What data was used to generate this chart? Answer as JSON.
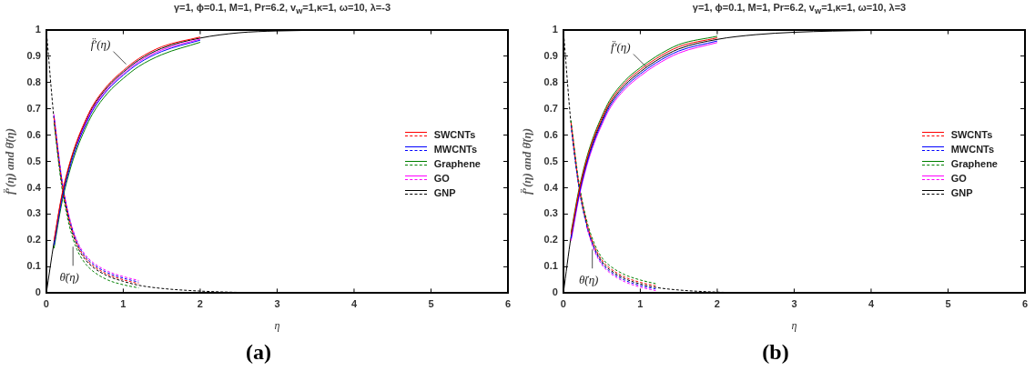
{
  "chart_data": [
    {
      "type": "line",
      "title": "γ=1, ϕ=0.1, M=1, Pr=6.2, v$_{w}$=1,κ=1, ω=10, λ=-3",
      "xlabel": "η",
      "ylabel": "f̈′(η) and θ̈(η)",
      "legend": "right",
      "grid": false,
      "marker": "none",
      "x": [
        0,
        0.1,
        0.2,
        0.3,
        0.4,
        0.5,
        0.6,
        0.8,
        1,
        1.2,
        1.5,
        2,
        2.5,
        3,
        4,
        5,
        6
      ],
      "xlim": [
        0,
        6
      ],
      "xticks": [
        0,
        1,
        2,
        3,
        4,
        5,
        6
      ],
      "ylim": [
        0,
        1
      ],
      "yticks": [
        0,
        0.1,
        0.2,
        0.3,
        0.4,
        0.5,
        0.6,
        0.7,
        0.8,
        0.9,
        1
      ],
      "series": [
        {
          "name": "SWCNTs",
          "color": "#ff0000",
          "line_style": "solid",
          "values": [
            null,
            0.2,
            0.37,
            0.49,
            0.58,
            0.65,
            0.71,
            0.79,
            0.845,
            0.89,
            0.935,
            0.972,
            null,
            null,
            null,
            null,
            null
          ]
        },
        {
          "name": "MWCNTs",
          "color": "#0000ff",
          "line_style": "solid",
          "values": [
            null,
            0.182,
            0.352,
            0.472,
            0.562,
            0.632,
            0.692,
            0.772,
            0.827,
            0.872,
            0.917,
            0.96,
            null,
            null,
            null,
            null,
            null
          ]
        },
        {
          "name": "Graphene",
          "color": "#008000",
          "line_style": "solid",
          "values": [
            null,
            0.17,
            0.34,
            0.46,
            0.55,
            0.62,
            0.68,
            0.76,
            0.815,
            0.86,
            0.905,
            0.952,
            null,
            null,
            null,
            null,
            null
          ]
        },
        {
          "name": "GO",
          "color": "#ff00ff",
          "line_style": "solid",
          "values": [
            null,
            null,
            null,
            null,
            0.568,
            0.638,
            0.698,
            0.778,
            0.833,
            0.878,
            0.923,
            0.964,
            null,
            null,
            null,
            null,
            null
          ]
        },
        {
          "name": "GNP",
          "color": "#000000",
          "line_style": "solid",
          "values": [
            0,
            0.194,
            0.364,
            0.484,
            0.574,
            0.644,
            0.704,
            0.784,
            0.839,
            0.884,
            0.929,
            0.968,
            0.988,
            0.995,
            0.999,
            1,
            1
          ]
        },
        {
          "color": "#ff0000",
          "line_style": "dashed",
          "values": [
            null,
            0.666,
            0.426,
            0.276,
            0.186,
            0.136,
            0.106,
            0.071,
            0.051,
            0.036,
            null,
            null,
            null,
            null,
            null,
            null,
            null
          ]
        },
        {
          "color": "#0000ff",
          "line_style": "dashed",
          "values": [
            null,
            0.672,
            0.432,
            0.282,
            0.192,
            0.142,
            0.112,
            0.077,
            0.057,
            0.042,
            null,
            null,
            null,
            null,
            null,
            null,
            null
          ]
        },
        {
          "color": "#008000",
          "line_style": "dashed",
          "values": [
            null,
            0.645,
            0.405,
            0.255,
            0.165,
            0.115,
            0.085,
            0.05,
            0.032,
            0.02,
            null,
            null,
            null,
            null,
            null,
            null,
            null
          ]
        },
        {
          "color": "#ff00ff",
          "line_style": "dashed",
          "values": [
            null,
            0.678,
            0.438,
            0.288,
            0.198,
            0.148,
            0.118,
            0.083,
            0.063,
            0.048,
            null,
            null,
            null,
            null,
            null,
            null,
            null
          ]
        },
        {
          "color": "#000000",
          "line_style": "dashed",
          "values": [
            1,
            0.66,
            0.42,
            0.27,
            0.18,
            0.13,
            0.1,
            0.065,
            0.045,
            0.03,
            0.018,
            0.008,
            0.003,
            0.001,
            0,
            0,
            0
          ]
        }
      ],
      "annotations": [
        {
          "text": "f̈′(η)",
          "x": 1.06,
          "y": 0.855
        },
        {
          "text": "θ̈(η)",
          "x": 0.37,
          "y": 0.19
        },
        "(a)"
      ]
    },
    {
      "type": "line",
      "title": "γ=1, ϕ=0.1, M=1, Pr=6.2, v$_{w}$=1,κ=1, ω=10, λ=3",
      "xlabel": "η",
      "ylabel": "f̈′(η) and θ̈(η)",
      "legend": "right",
      "grid": false,
      "marker": "none",
      "x": [
        0,
        0.1,
        0.2,
        0.3,
        0.4,
        0.5,
        0.6,
        0.8,
        1,
        1.2,
        1.5,
        2,
        2.5,
        3,
        4,
        5,
        6
      ],
      "xlim": [
        0,
        6
      ],
      "xticks": [
        0,
        1,
        2,
        3,
        4,
        5,
        6
      ],
      "ylim": [
        0,
        1
      ],
      "yticks": [
        0,
        0.1,
        0.2,
        0.3,
        0.4,
        0.5,
        0.6,
        0.7,
        0.8,
        0.9,
        1
      ],
      "series": [
        {
          "name": "SWCNTs",
          "color": "#ff0000",
          "line_style": "solid",
          "values": [
            null,
            0.223,
            0.383,
            0.503,
            0.593,
            0.663,
            0.723,
            0.798,
            0.848,
            0.889,
            0.935,
            0.969,
            null,
            null,
            null,
            null,
            null
          ]
        },
        {
          "name": "MWCNTs",
          "color": "#0000ff",
          "line_style": "solid",
          "values": [
            null,
            0.207,
            0.367,
            0.487,
            0.577,
            0.647,
            0.707,
            0.782,
            0.832,
            0.873,
            0.919,
            0.957,
            null,
            null,
            null,
            null,
            null
          ]
        },
        {
          "name": "Graphene",
          "color": "#008000",
          "line_style": "solid",
          "values": [
            null,
            0.231,
            0.391,
            0.511,
            0.601,
            0.671,
            0.731,
            0.806,
            0.856,
            0.897,
            0.943,
            0.975,
            null,
            null,
            null,
            null,
            null
          ]
        },
        {
          "name": "GO",
          "color": "#ff00ff",
          "line_style": "solid",
          "values": [
            null,
            0.199,
            0.359,
            0.479,
            0.569,
            0.639,
            0.699,
            0.774,
            0.824,
            0.865,
            0.911,
            0.951,
            null,
            null,
            null,
            null,
            null
          ]
        },
        {
          "name": "GNP",
          "color": "#000000",
          "line_style": "solid",
          "values": [
            0,
            0.215,
            0.375,
            0.495,
            0.585,
            0.655,
            0.715,
            0.79,
            0.84,
            0.881,
            0.927,
            0.963,
            0.981,
            0.99,
            0.997,
            0.999,
            1
          ]
        },
        {
          "color": "#ff0000",
          "line_style": "dashed",
          "values": [
            null,
            0.646,
            0.416,
            0.271,
            0.181,
            0.126,
            0.096,
            0.061,
            0.041,
            0.028,
            null,
            null,
            null,
            null,
            null,
            null,
            null
          ]
        },
        {
          "color": "#0000ff",
          "line_style": "dashed",
          "values": [
            null,
            0.634,
            0.404,
            0.259,
            0.169,
            0.114,
            0.084,
            0.049,
            0.029,
            0.016,
            null,
            null,
            null,
            null,
            null,
            null,
            null
          ]
        },
        {
          "color": "#008000",
          "line_style": "dashed",
          "values": [
            null,
            0.655,
            0.425,
            0.28,
            0.19,
            0.135,
            0.105,
            0.07,
            0.05,
            0.036,
            null,
            null,
            null,
            null,
            null,
            null,
            null
          ]
        },
        {
          "color": "#ff00ff",
          "line_style": "dashed",
          "values": [
            null,
            null,
            null,
            0.253,
            0.163,
            0.108,
            0.078,
            0.043,
            0.023,
            0.01,
            null,
            null,
            null,
            null,
            null,
            null,
            null
          ]
        },
        {
          "color": "#000000",
          "line_style": "dashed",
          "values": [
            1,
            0.64,
            0.41,
            0.265,
            0.175,
            0.12,
            0.09,
            0.055,
            0.035,
            0.022,
            0.012,
            0.004,
            0.001,
            0,
            0,
            0,
            0
          ]
        }
      ],
      "annotations": [
        {
          "text": "f̈′(η)",
          "x": 1.1,
          "y": 0.845
        },
        {
          "text": "θ̈(η)",
          "x": 0.4,
          "y": 0.18
        },
        "(b)"
      ]
    }
  ]
}
